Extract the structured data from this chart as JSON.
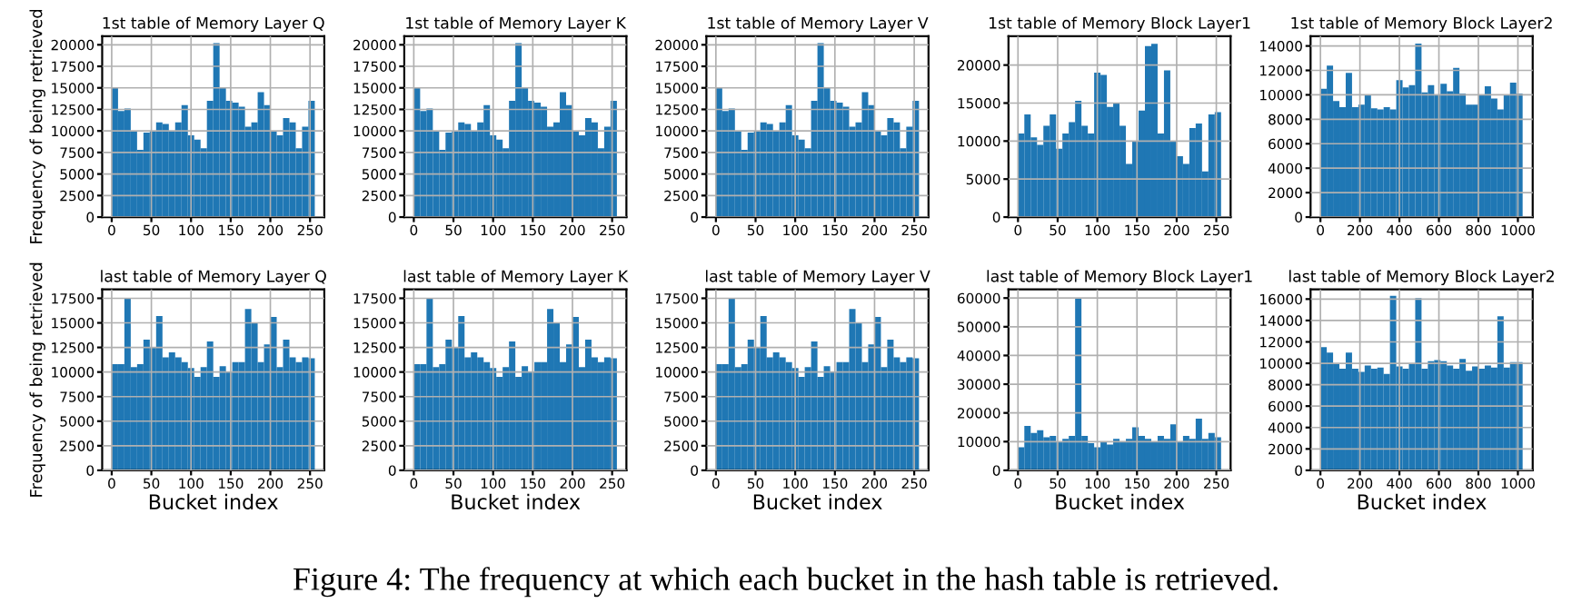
{
  "chart_data": [
    {
      "type": "histogram",
      "title": "1st table of Memory Layer Q",
      "ylabel": "Frequency of being retrieved",
      "color": "#1f77b4",
      "grid": true,
      "xlim": [
        -12,
        268
      ],
      "xticks": [
        0,
        50,
        100,
        150,
        200,
        250
      ],
      "ylim": [
        0,
        21000
      ],
      "yticks": [
        0,
        2500,
        5000,
        7500,
        10000,
        12500,
        15000,
        17500,
        20000
      ],
      "bins": [
        0,
        8,
        16,
        24,
        32,
        40,
        48,
        56,
        64,
        72,
        80,
        88,
        96,
        104,
        112,
        120,
        128,
        136,
        144,
        152,
        160,
        168,
        176,
        184,
        192,
        200,
        208,
        216,
        224,
        232,
        240,
        248,
        256
      ],
      "values": [
        15000,
        12300,
        12600,
        10000,
        7800,
        9800,
        10000,
        11000,
        10800,
        10000,
        11000,
        13000,
        9500,
        9000,
        8000,
        13500,
        20200,
        15000,
        13500,
        13300,
        12800,
        10500,
        11000,
        14500,
        13000,
        10000,
        9500,
        11500,
        11000,
        8000,
        10500,
        13500
      ]
    },
    {
      "type": "histogram",
      "title": "1st table of Memory Layer K",
      "color": "#1f77b4",
      "grid": true,
      "xlim": [
        -12,
        268
      ],
      "xticks": [
        0,
        50,
        100,
        150,
        200,
        250
      ],
      "ylim": [
        0,
        21000
      ],
      "yticks": [
        0,
        2500,
        5000,
        7500,
        10000,
        12500,
        15000,
        17500,
        20000
      ],
      "bins": [
        0,
        8,
        16,
        24,
        32,
        40,
        48,
        56,
        64,
        72,
        80,
        88,
        96,
        104,
        112,
        120,
        128,
        136,
        144,
        152,
        160,
        168,
        176,
        184,
        192,
        200,
        208,
        216,
        224,
        232,
        240,
        248,
        256
      ],
      "values": [
        15000,
        12300,
        12600,
        10000,
        7800,
        9800,
        10000,
        11000,
        10800,
        10000,
        11000,
        13000,
        9500,
        9000,
        8000,
        13500,
        20200,
        15000,
        13500,
        13300,
        12800,
        10500,
        11000,
        14500,
        13000,
        10000,
        9500,
        11500,
        11000,
        8000,
        10500,
        13500
      ]
    },
    {
      "type": "histogram",
      "title": "1st table of Memory Layer V",
      "color": "#1f77b4",
      "grid": true,
      "xlim": [
        -12,
        268
      ],
      "xticks": [
        0,
        50,
        100,
        150,
        200,
        250
      ],
      "ylim": [
        0,
        21000
      ],
      "yticks": [
        0,
        2500,
        5000,
        7500,
        10000,
        12500,
        15000,
        17500,
        20000
      ],
      "bins": [
        0,
        8,
        16,
        24,
        32,
        40,
        48,
        56,
        64,
        72,
        80,
        88,
        96,
        104,
        112,
        120,
        128,
        136,
        144,
        152,
        160,
        168,
        176,
        184,
        192,
        200,
        208,
        216,
        224,
        232,
        240,
        248,
        256
      ],
      "values": [
        15000,
        12300,
        12600,
        10000,
        7800,
        9800,
        10000,
        11000,
        10800,
        10000,
        11000,
        13000,
        9500,
        9000,
        8000,
        13500,
        20200,
        15000,
        13500,
        13300,
        12800,
        10500,
        11000,
        14500,
        13000,
        10000,
        9500,
        11500,
        11000,
        8000,
        10500,
        13500
      ]
    },
    {
      "type": "histogram",
      "title": "1st table of Memory Block Layer1",
      "color": "#1f77b4",
      "grid": true,
      "xlim": [
        -12,
        268
      ],
      "xticks": [
        0,
        50,
        100,
        150,
        200,
        250
      ],
      "ylim": [
        0,
        23800
      ],
      "yticks": [
        0,
        5000,
        10000,
        15000,
        20000
      ],
      "bins": [
        0,
        8,
        16,
        24,
        32,
        40,
        48,
        56,
        64,
        72,
        80,
        88,
        96,
        104,
        112,
        120,
        128,
        136,
        144,
        152,
        160,
        168,
        176,
        184,
        192,
        200,
        208,
        216,
        224,
        232,
        240,
        248,
        256
      ],
      "values": [
        11000,
        13500,
        10500,
        9500,
        12000,
        13500,
        9000,
        11000,
        12500,
        15300,
        12000,
        11000,
        19000,
        18700,
        14500,
        15000,
        12000,
        7000,
        10000,
        14000,
        22500,
        22800,
        11000,
        19300,
        10000,
        8000,
        7000,
        11700,
        12300,
        6000,
        13500,
        13800
      ]
    },
    {
      "type": "histogram",
      "title": "1st table of Memory Block Layer2",
      "color": "#1f77b4",
      "grid": true,
      "xlim": [
        -50,
        1075
      ],
      "xticks": [
        0,
        200,
        400,
        600,
        800,
        1000
      ],
      "ylim": [
        0,
        14800
      ],
      "yticks": [
        0,
        2000,
        4000,
        6000,
        8000,
        10000,
        12000,
        14000
      ],
      "bins": [
        0,
        32,
        64,
        96,
        128,
        160,
        192,
        224,
        256,
        288,
        320,
        352,
        384,
        416,
        448,
        480,
        512,
        544,
        576,
        608,
        640,
        672,
        704,
        736,
        768,
        800,
        832,
        864,
        896,
        928,
        960,
        992,
        1024
      ],
      "values": [
        10500,
        12400,
        9500,
        9000,
        11800,
        9000,
        9200,
        10000,
        8900,
        8800,
        9000,
        8800,
        11200,
        10600,
        10800,
        14200,
        10200,
        10800,
        10000,
        10900,
        10300,
        12200,
        10100,
        9200,
        9200,
        10000,
        10700,
        9700,
        8800,
        10000,
        11000,
        10100
      ]
    },
    {
      "type": "histogram",
      "title": "last table of Memory Layer Q",
      "xlabel": "Bucket index",
      "ylabel": "Frequency of being retrieved",
      "color": "#1f77b4",
      "grid": true,
      "xlim": [
        -12,
        268
      ],
      "xticks": [
        0,
        50,
        100,
        150,
        200,
        250
      ],
      "ylim": [
        0,
        18400
      ],
      "yticks": [
        0,
        2500,
        5000,
        7500,
        10000,
        12500,
        15000,
        17500
      ],
      "bins": [
        0,
        8,
        16,
        24,
        32,
        40,
        48,
        56,
        64,
        72,
        80,
        88,
        96,
        104,
        112,
        120,
        128,
        136,
        144,
        152,
        160,
        168,
        176,
        184,
        192,
        200,
        208,
        216,
        224,
        232,
        240,
        248,
        256
      ],
      "values": [
        10800,
        10800,
        17500,
        10500,
        10800,
        13300,
        12500,
        15700,
        11500,
        12000,
        11500,
        11000,
        10400,
        9500,
        10500,
        13100,
        9500,
        10600,
        10000,
        11000,
        11000,
        16400,
        15000,
        11000,
        12800,
        15600,
        10500,
        13300,
        11500,
        11000,
        11500,
        11400
      ]
    },
    {
      "type": "histogram",
      "title": "last table of Memory Layer K",
      "xlabel": "Bucket index",
      "color": "#1f77b4",
      "grid": true,
      "xlim": [
        -12,
        268
      ],
      "xticks": [
        0,
        50,
        100,
        150,
        200,
        250
      ],
      "ylim": [
        0,
        18400
      ],
      "yticks": [
        0,
        2500,
        5000,
        7500,
        10000,
        12500,
        15000,
        17500
      ],
      "bins": [
        0,
        8,
        16,
        24,
        32,
        40,
        48,
        56,
        64,
        72,
        80,
        88,
        96,
        104,
        112,
        120,
        128,
        136,
        144,
        152,
        160,
        168,
        176,
        184,
        192,
        200,
        208,
        216,
        224,
        232,
        240,
        248,
        256
      ],
      "values": [
        10800,
        10800,
        17500,
        10500,
        10800,
        13300,
        12500,
        15700,
        11500,
        12000,
        11500,
        11000,
        10400,
        9500,
        10500,
        13100,
        9500,
        10600,
        10000,
        11000,
        11000,
        16400,
        15000,
        11000,
        12800,
        15600,
        10500,
        13300,
        11500,
        11000,
        11500,
        11400
      ]
    },
    {
      "type": "histogram",
      "title": "last table of Memory Layer V",
      "xlabel": "Bucket index",
      "color": "#1f77b4",
      "grid": true,
      "xlim": [
        -12,
        268
      ],
      "xticks": [
        0,
        50,
        100,
        150,
        200,
        250
      ],
      "ylim": [
        0,
        18400
      ],
      "yticks": [
        0,
        2500,
        5000,
        7500,
        10000,
        12500,
        15000,
        17500
      ],
      "bins": [
        0,
        8,
        16,
        24,
        32,
        40,
        48,
        56,
        64,
        72,
        80,
        88,
        96,
        104,
        112,
        120,
        128,
        136,
        144,
        152,
        160,
        168,
        176,
        184,
        192,
        200,
        208,
        216,
        224,
        232,
        240,
        248,
        256
      ],
      "values": [
        10800,
        10800,
        17500,
        10500,
        10800,
        13300,
        12500,
        15700,
        11500,
        12000,
        11500,
        11000,
        10400,
        9500,
        10500,
        13100,
        9500,
        10600,
        10000,
        11000,
        11000,
        16400,
        15000,
        11000,
        12800,
        15600,
        10500,
        13300,
        11500,
        11000,
        11500,
        11400
      ]
    },
    {
      "type": "histogram",
      "title": "last table of Memory Block Layer1",
      "xlabel": "Bucket index",
      "color": "#1f77b4",
      "grid": true,
      "xlim": [
        -12,
        268
      ],
      "xticks": [
        0,
        50,
        100,
        150,
        200,
        250
      ],
      "ylim": [
        0,
        63000
      ],
      "yticks": [
        0,
        10000,
        20000,
        30000,
        40000,
        50000,
        60000
      ],
      "bins": [
        0,
        8,
        16,
        24,
        32,
        40,
        48,
        56,
        64,
        72,
        80,
        88,
        96,
        104,
        112,
        120,
        128,
        136,
        144,
        152,
        160,
        168,
        176,
        184,
        192,
        200,
        208,
        216,
        224,
        232,
        240,
        248,
        256
      ],
      "values": [
        8000,
        15500,
        13000,
        14000,
        11500,
        12000,
        10000,
        11000,
        12000,
        60000,
        12000,
        9500,
        8000,
        10000,
        9000,
        11000,
        10000,
        11000,
        15000,
        12000,
        11000,
        10000,
        12000,
        11000,
        16000,
        10000,
        12000,
        11000,
        18000,
        11000,
        13000,
        11500
      ]
    },
    {
      "type": "histogram",
      "title": "last table of Memory Block Layer2",
      "xlabel": "Bucket index",
      "color": "#1f77b4",
      "grid": true,
      "xlim": [
        -50,
        1075
      ],
      "xticks": [
        0,
        200,
        400,
        600,
        800,
        1000
      ],
      "ylim": [
        0,
        16900
      ],
      "yticks": [
        0,
        2000,
        4000,
        6000,
        8000,
        10000,
        12000,
        14000,
        16000
      ],
      "bins": [
        0,
        32,
        64,
        96,
        128,
        160,
        192,
        224,
        256,
        288,
        320,
        352,
        384,
        416,
        448,
        480,
        512,
        544,
        576,
        608,
        640,
        672,
        704,
        736,
        768,
        800,
        832,
        864,
        896,
        928,
        960,
        992,
        1024
      ],
      "values": [
        11500,
        11000,
        10000,
        9500,
        11000,
        9500,
        9200,
        9800,
        9500,
        9600,
        9000,
        16300,
        9700,
        9500,
        10000,
        16100,
        9500,
        10200,
        10300,
        10200,
        9800,
        9500,
        10400,
        9300,
        9700,
        9500,
        9800,
        9600,
        14400,
        9600,
        10100,
        10100
      ],
      "annotations": [
        "Figure 4: The frequency at which each bucket in the hash table is retrieved."
      ]
    }
  ]
}
